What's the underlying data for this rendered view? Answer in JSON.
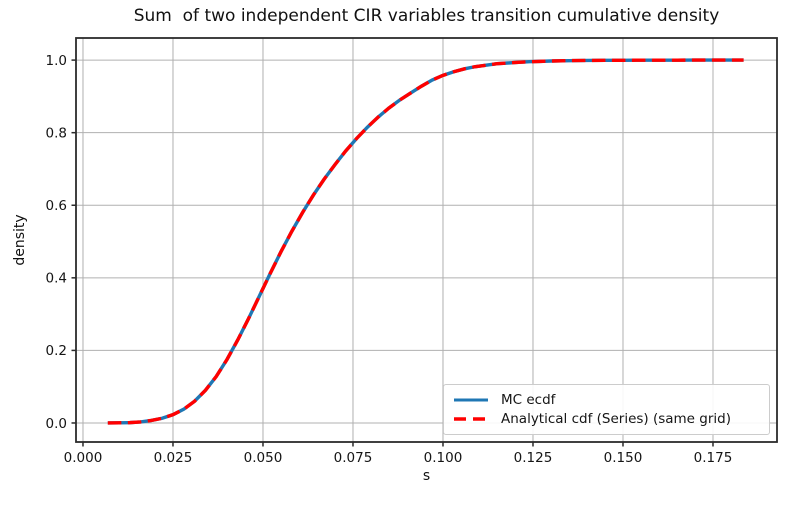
{
  "chart_data": {
    "type": "line",
    "title": "Sum  of two independent CIR variables transition cumulative density",
    "xlabel": "s",
    "ylabel": "density",
    "xlim": [
      -0.00194,
      0.19278
    ],
    "ylim": [
      -0.0524,
      1.0609
    ],
    "grid": true,
    "legend_position": "lower right",
    "colors": {
      "grid": "#b0b0b0",
      "spine": "#2b2b2b",
      "text": "#151515",
      "background": "#ffffff"
    },
    "xticks": {
      "values": [
        0.0,
        0.025,
        0.05,
        0.075,
        0.1,
        0.125,
        0.15,
        0.175
      ],
      "labels": [
        "0.000",
        "0.025",
        "0.050",
        "0.075",
        "0.100",
        "0.125",
        "0.150",
        "0.175"
      ]
    },
    "yticks": {
      "values": [
        0.0,
        0.2,
        0.4,
        0.6,
        0.8,
        1.0
      ],
      "labels": [
        "0.0",
        "0.2",
        "0.4",
        "0.6",
        "0.8",
        "1.0"
      ]
    },
    "x": [
      0.0069,
      0.01,
      0.013,
      0.016,
      0.019,
      0.022,
      0.025,
      0.028,
      0.031,
      0.034,
      0.037,
      0.04,
      0.043,
      0.046,
      0.049,
      0.052,
      0.055,
      0.058,
      0.061,
      0.064,
      0.067,
      0.07,
      0.073,
      0.076,
      0.079,
      0.082,
      0.085,
      0.088,
      0.091,
      0.094,
      0.097,
      0.1,
      0.103,
      0.106,
      0.109,
      0.112,
      0.115,
      0.118,
      0.121,
      0.124,
      0.127,
      0.13,
      0.135,
      0.14,
      0.145,
      0.15,
      0.155,
      0.16,
      0.165,
      0.17,
      0.175,
      0.1835
    ],
    "series": [
      {
        "name": "MC ecdf",
        "color": "#1f77b4",
        "style": "solid",
        "y": [
          0.0,
          0.0005,
          0.001,
          0.003,
          0.007,
          0.013,
          0.023,
          0.038,
          0.06,
          0.09,
          0.128,
          0.175,
          0.229,
          0.288,
          0.35,
          0.412,
          0.472,
          0.528,
          0.58,
          0.628,
          0.672,
          0.712,
          0.75,
          0.784,
          0.815,
          0.843,
          0.868,
          0.89,
          0.909,
          0.928,
          0.945,
          0.958,
          0.968,
          0.976,
          0.982,
          0.986,
          0.99,
          0.992,
          0.994,
          0.9955,
          0.9965,
          0.9975,
          0.9985,
          0.999,
          0.9993,
          0.9995,
          0.9997,
          0.9998,
          0.9999,
          1.0,
          1.0,
          1.0
        ]
      },
      {
        "name": "Analytical cdf (Series) (same grid)",
        "color": "#ff0000",
        "style": "dashed",
        "y": [
          0.0,
          0.0005,
          0.001,
          0.003,
          0.007,
          0.013,
          0.023,
          0.038,
          0.06,
          0.09,
          0.128,
          0.175,
          0.229,
          0.288,
          0.35,
          0.412,
          0.472,
          0.528,
          0.58,
          0.628,
          0.672,
          0.712,
          0.75,
          0.784,
          0.815,
          0.843,
          0.868,
          0.89,
          0.909,
          0.928,
          0.945,
          0.958,
          0.968,
          0.976,
          0.982,
          0.986,
          0.99,
          0.992,
          0.994,
          0.9955,
          0.9965,
          0.9975,
          0.9985,
          0.999,
          0.9993,
          0.9995,
          0.9997,
          0.9998,
          0.9999,
          1.0,
          1.0,
          1.0
        ]
      }
    ]
  }
}
